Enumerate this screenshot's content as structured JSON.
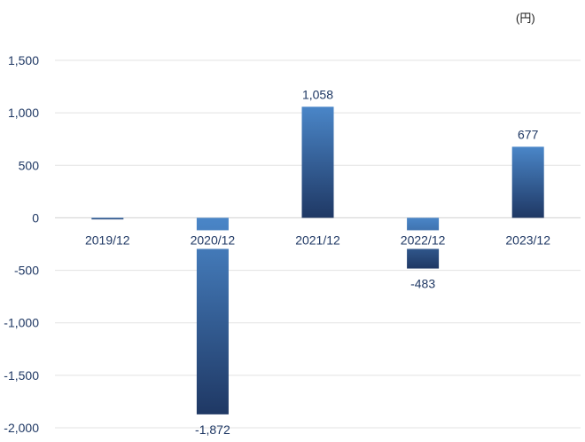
{
  "unit_label": "(円)",
  "chart_data": {
    "type": "bar",
    "categories": [
      "2019/12",
      "2020/12",
      "2021/12",
      "2022/12",
      "2023/12"
    ],
    "values": [
      -15,
      -1872,
      1058,
      -483,
      677
    ],
    "data_labels": [
      "",
      "-1,872",
      "1,058",
      "-483",
      "677"
    ],
    "title": "",
    "xlabel": "",
    "ylabel": "",
    "ylim": [
      -2000,
      1500
    ],
    "y_ticks": [
      1500,
      1000,
      500,
      0,
      -500,
      -1000,
      -1500,
      -2000
    ],
    "y_tick_labels": [
      "1,500",
      "1,000",
      "500",
      "0",
      "-500",
      "-1,000",
      "-1,500",
      "-2,000"
    ],
    "grid": true,
    "legend": "none",
    "colors": {
      "bar_top": "#4a86c8",
      "bar_bottom": "#1f3864",
      "grid": "#e3e3e3",
      "axis_zero": "#d0d0d0",
      "text": "#1f3864"
    }
  }
}
